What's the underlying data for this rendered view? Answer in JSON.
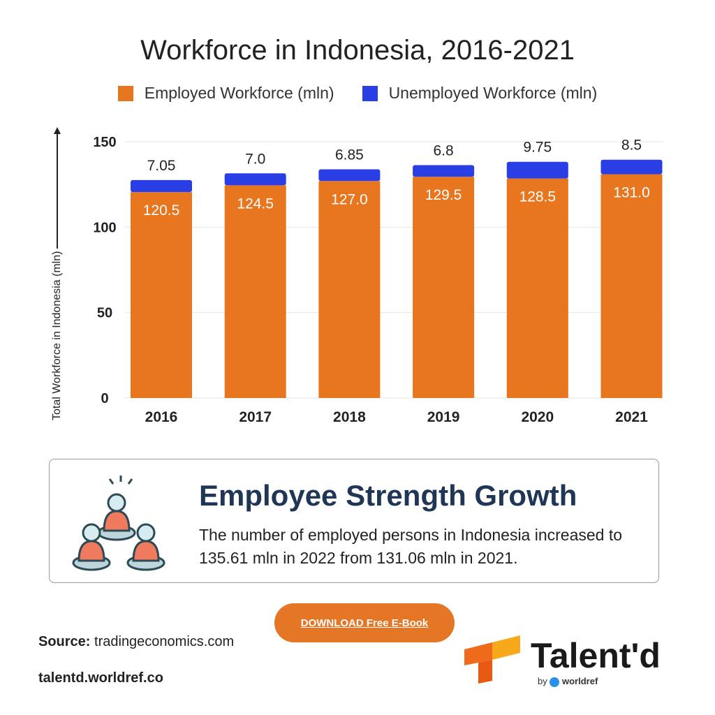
{
  "chart_data": {
    "type": "bar",
    "stacked": true,
    "title": "Workforce in Indonesia, 2016-2021",
    "categories": [
      "2016",
      "2017",
      "2018",
      "2019",
      "2020",
      "2021"
    ],
    "series": [
      {
        "name": "Employed Workforce (mln)",
        "color": "#e8761f",
        "values": [
          120.5,
          124.5,
          127.0,
          129.5,
          128.5,
          131.0
        ],
        "labels": [
          "120.5",
          "124.5",
          "127.0",
          "129.5",
          "128.5",
          "131.0"
        ]
      },
      {
        "name": "Unemployed Workforce (mln)",
        "color": "#2a3ee6",
        "values": [
          7.05,
          7.0,
          6.85,
          6.8,
          9.75,
          8.5
        ],
        "labels": [
          "7.05",
          "7.0",
          "6.85",
          "6.8",
          "9.75",
          "8.5"
        ]
      }
    ],
    "ylabel": "Total Workforce in Indonesia (mln)",
    "ylim": [
      0,
      150
    ],
    "yticks": [
      "0",
      "50",
      "100",
      "150"
    ],
    "grid": true,
    "legend": "top"
  },
  "card": {
    "title": "Employee Strength Growth",
    "text": "The number of employed persons in Indonesia increased to 135.61 mln in 2022 from 131.06 mln in 2021."
  },
  "button": "DOWNLOAD Free E-Book",
  "source_label": "Source:",
  "source": "tradingeconomics.com",
  "site": "talentd.worldref.co",
  "brand": {
    "name": "Talent'd",
    "by": "by",
    "partner": "worldref"
  }
}
